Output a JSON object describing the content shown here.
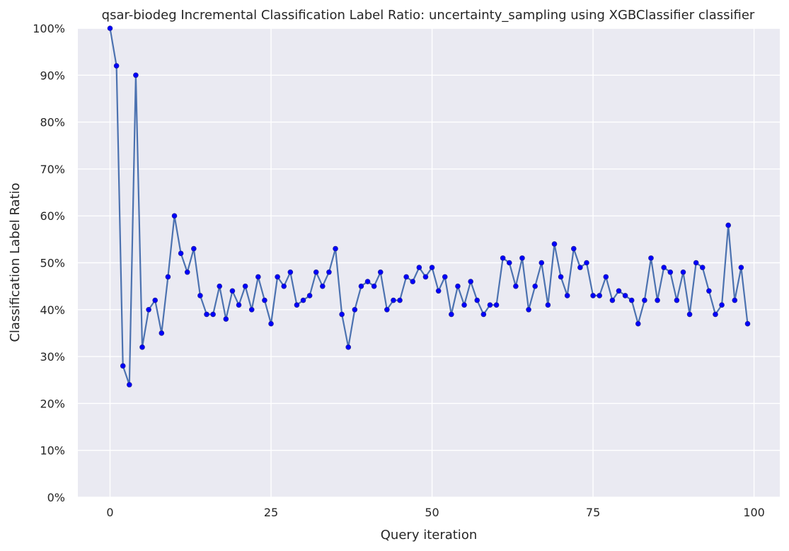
{
  "chart_data": {
    "type": "line",
    "title": "qsar-biodeg Incremental Classification Label Ratio: uncertainty_sampling using XGBClassifier classifier",
    "xlabel": "Query iteration",
    "ylabel": "Classification Label Ratio",
    "xlim": [
      -5,
      104
    ],
    "ylim": [
      0,
      1
    ],
    "x_ticks": [
      0,
      25,
      50,
      75,
      100
    ],
    "x_tick_labels": [
      "0",
      "25",
      "50",
      "75",
      "100"
    ],
    "y_ticks": [
      0,
      0.1,
      0.2,
      0.3,
      0.4,
      0.5,
      0.6,
      0.7,
      0.8,
      0.9,
      1.0
    ],
    "y_tick_labels": [
      "0%",
      "10%",
      "20%",
      "30%",
      "40%",
      "50%",
      "60%",
      "70%",
      "80%",
      "90%",
      "100%"
    ],
    "grid": true,
    "colors": {
      "background": "#eaeaf2",
      "line": "#4c72b0",
      "marker": "#0000ff"
    },
    "series": [
      {
        "values": [
          1.0,
          0.92,
          0.28,
          0.24,
          0.9,
          0.32,
          0.4,
          0.42,
          0.35,
          0.47,
          0.6,
          0.52,
          0.48,
          0.53,
          0.43,
          0.39,
          0.39,
          0.45,
          0.38,
          0.44,
          0.41,
          0.45,
          0.4,
          0.47,
          0.42,
          0.37,
          0.47,
          0.45,
          0.48,
          0.41,
          0.42,
          0.43,
          0.48,
          0.45,
          0.48,
          0.53,
          0.39,
          0.32,
          0.4,
          0.45,
          0.46,
          0.45,
          0.48,
          0.4,
          0.42,
          0.42,
          0.47,
          0.46,
          0.49,
          0.47,
          0.49,
          0.44,
          0.47,
          0.39,
          0.45,
          0.41,
          0.46,
          0.42,
          0.39,
          0.41,
          0.41,
          0.51,
          0.5,
          0.45,
          0.51,
          0.4,
          0.45,
          0.5,
          0.41,
          0.54,
          0.47,
          0.43,
          0.53,
          0.49,
          0.5,
          0.43,
          0.43,
          0.47,
          0.42,
          0.44,
          0.43,
          0.42,
          0.37,
          0.42,
          0.51,
          0.42,
          0.49,
          0.48,
          0.42,
          0.48,
          0.39,
          0.5,
          0.49,
          0.44,
          0.39,
          0.41,
          0.58,
          0.42,
          0.49,
          0.37
        ]
      }
    ]
  }
}
